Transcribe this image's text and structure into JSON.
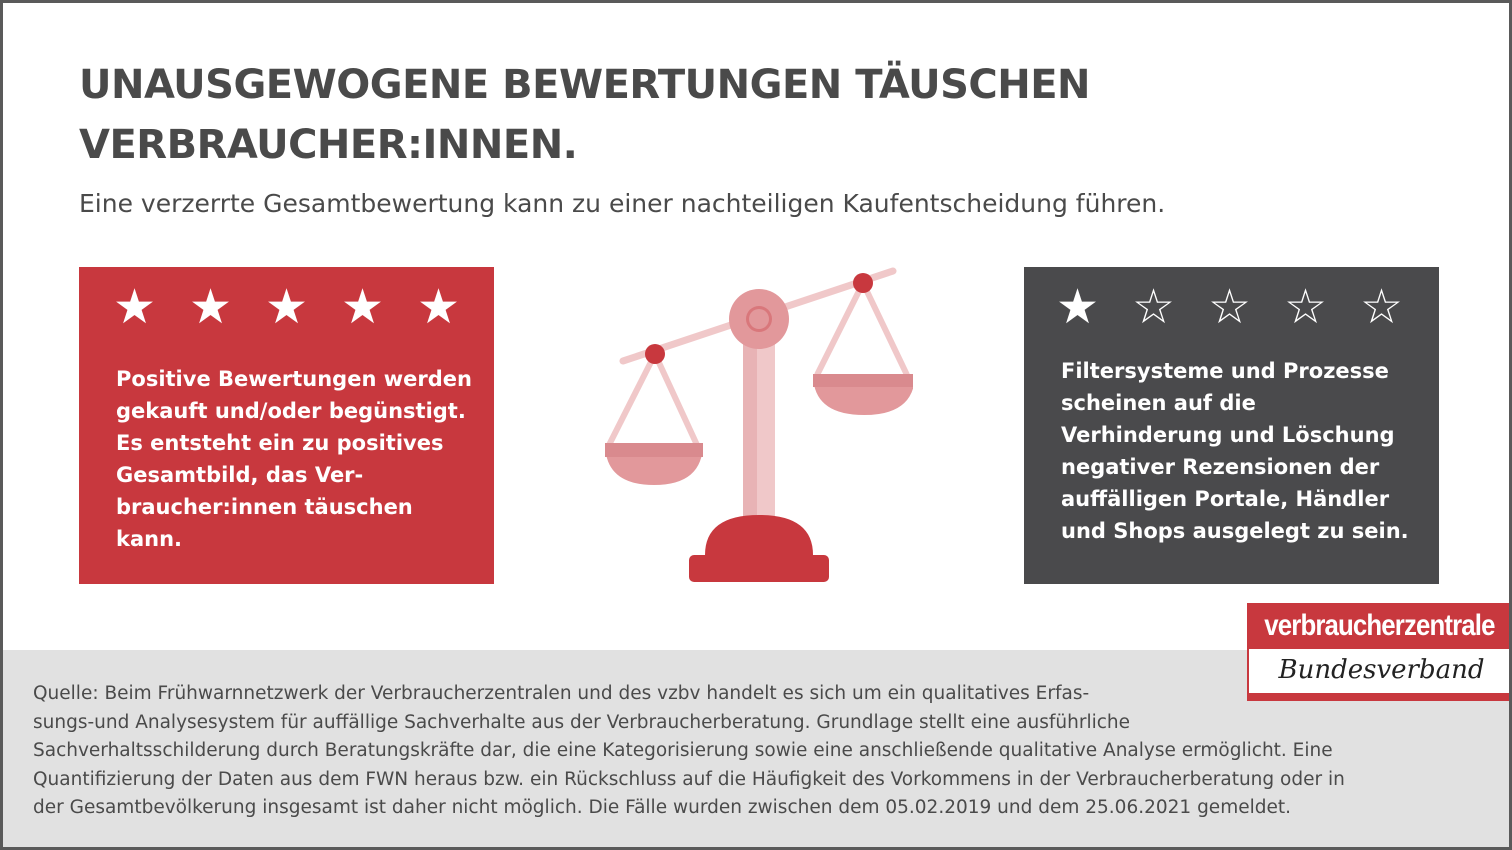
{
  "title_lines": [
    "UNAUSGEWOGENE BEWERTUNGEN TÄUSCHEN",
    "VERBRAUCHER:INNEN."
  ],
  "subtitle": "Eine verzerrte Gesamtbewertung kann zu einer nachteiligen Kaufentscheidung führen.",
  "left_card": {
    "rating": 5,
    "max_rating": 5,
    "color": "#c8383e",
    "text_lines": [
      "Positive Bewertungen werden",
      "gekauft und/oder begünstigt.",
      "Es entsteht ein zu positives",
      "Gesamtbild, das Ver-",
      "braucher:innen täuschen",
      "kann."
    ]
  },
  "right_card": {
    "rating": 1,
    "max_rating": 5,
    "color": "#4a4a4c",
    "text_lines": [
      "Filtersysteme und Prozesse",
      "scheinen auf die",
      "Verhinderung und Löschung",
      "negativer Rezensionen der",
      "auffälligen Portale, Händler",
      "und Shops ausgelegt zu sein."
    ]
  },
  "illustration": {
    "icon": "balance-scale-icon",
    "colors": {
      "dark": "#c8383e",
      "medium": "#e2989b",
      "light": "#f0c8c9"
    }
  },
  "footer_lines": [
    "Quelle: Beim Frühwarnnetzwerk der Verbraucherzentralen und des vzbv handelt es sich um ein qualitatives Erfas-",
    "sungs-und Analysesystem für auffällige Sachverhalte aus der Verbraucherberatung. Grundlage stellt eine ausführliche",
    "Sachverhaltsschilderung durch Beratungskräfte dar, die eine Kategorisierung sowie eine anschließende qualitative Analyse ermöglicht. Eine",
    "Quantifizierung der Daten aus dem FWN heraus bzw. ein Rückschluss auf die Häufigkeit des Vorkommens in der Verbraucherberatung oder in",
    "der Gesamtbevölkerung insgesamt ist daher nicht möglich. Die Fälle wurden zwischen dem 05.02.2019 und dem 25.06.2021 gemeldet."
  ],
  "logo": {
    "top": "verbraucherzentrale",
    "bottom": "Bundesverband",
    "color": "#c8383e"
  }
}
